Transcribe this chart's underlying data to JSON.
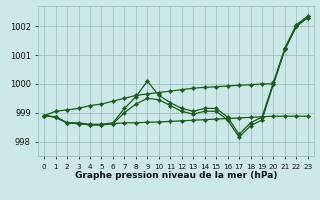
{
  "xlabel": "Graphe pression niveau de la mer (hPa)",
  "background_color": "#cce8e8",
  "grid_color": "#99bbbb",
  "line_color": "#1a5c1a",
  "hours": [
    0,
    1,
    2,
    3,
    4,
    5,
    6,
    7,
    8,
    9,
    10,
    11,
    12,
    13,
    14,
    15,
    16,
    17,
    18,
    19,
    20,
    21,
    22,
    23
  ],
  "line_straight": [
    998.9,
    999.05,
    999.1,
    999.15,
    999.25,
    999.3,
    999.4,
    999.5,
    999.6,
    999.65,
    999.7,
    999.75,
    999.8,
    999.85,
    999.88,
    999.9,
    999.93,
    999.95,
    999.97,
    1000.0,
    1000.0,
    1001.2,
    1002.0,
    1002.3
  ],
  "line_peak9": [
    998.9,
    998.85,
    998.65,
    998.65,
    998.6,
    998.6,
    998.65,
    999.15,
    999.55,
    1000.1,
    999.6,
    999.35,
    999.15,
    999.05,
    999.15,
    999.15,
    998.85,
    998.25,
    998.65,
    998.85,
    1000.05,
    1001.25,
    1002.05,
    1002.35
  ],
  "line_flat": [
    998.9,
    998.85,
    998.65,
    998.62,
    998.58,
    998.58,
    998.62,
    998.65,
    998.65,
    998.67,
    998.68,
    998.7,
    998.72,
    998.74,
    998.76,
    998.78,
    998.8,
    998.82,
    998.84,
    998.86,
    998.88,
    998.88,
    998.88,
    998.88
  ],
  "line_dip17": [
    998.9,
    998.85,
    998.65,
    998.62,
    998.58,
    998.58,
    998.62,
    999.0,
    999.3,
    999.5,
    999.45,
    999.25,
    999.05,
    998.95,
    999.05,
    999.05,
    998.75,
    998.15,
    998.55,
    998.75,
    1000.0,
    1001.2,
    1002.0,
    1002.3
  ],
  "ylim": [
    997.5,
    1002.7
  ],
  "yticks": [
    998,
    999,
    1000,
    1001,
    1002
  ],
  "markersize": 2.2
}
